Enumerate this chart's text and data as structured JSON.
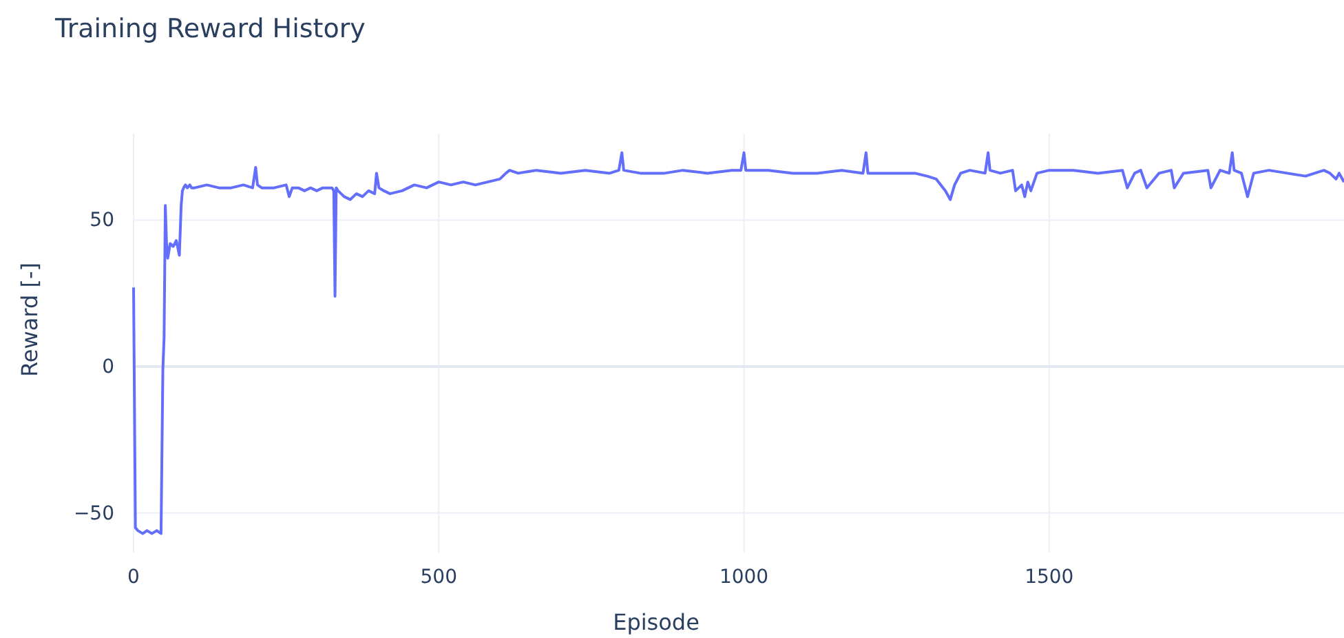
{
  "chart_data": {
    "type": "line",
    "title": "Training Reward History",
    "xlabel": "Episode",
    "ylabel": "Reward [-]",
    "xlim": [
      0,
      1983
    ],
    "ylim": [
      -63.5,
      79.5
    ],
    "xticks": [
      0,
      500,
      1000,
      1500
    ],
    "yticks": [
      -50,
      0,
      50
    ],
    "grid": true,
    "series": [
      {
        "color": "#636efa",
        "x": [
          0,
          3,
          7,
          15,
          22,
          30,
          38,
          45,
          48,
          50,
          52,
          54,
          56,
          60,
          65,
          70,
          75,
          78,
          80,
          82,
          85,
          88,
          92,
          95,
          100,
          120,
          140,
          160,
          180,
          195,
          200,
          203,
          210,
          230,
          250,
          255,
          260,
          270,
          280,
          290,
          300,
          310,
          320,
          325,
          328,
          330,
          332,
          335,
          345,
          355,
          365,
          375,
          385,
          395,
          398,
          402,
          410,
          420,
          440,
          460,
          480,
          500,
          520,
          540,
          560,
          580,
          600,
          610,
          616,
          630,
          660,
          700,
          740,
          780,
          795,
          800,
          803,
          830,
          870,
          900,
          940,
          980,
          995,
          1000,
          1003,
          1040,
          1080,
          1120,
          1160,
          1195,
          1200,
          1203,
          1240,
          1280,
          1300,
          1315,
          1330,
          1338,
          1345,
          1355,
          1370,
          1395,
          1400,
          1403,
          1420,
          1440,
          1445,
          1455,
          1460,
          1465,
          1470,
          1480,
          1500,
          1540,
          1580,
          1620,
          1628,
          1640,
          1650,
          1660,
          1680,
          1700,
          1705,
          1720,
          1760,
          1765,
          1780,
          1795,
          1800,
          1803,
          1815,
          1825,
          1835,
          1860,
          1890,
          1920,
          1950,
          1960,
          1970,
          1975,
          1983
        ],
        "values": [
          27,
          -55,
          -56,
          -57,
          -56,
          -57,
          -56,
          -57,
          -1,
          10,
          55,
          42,
          37,
          42,
          41,
          43,
          38,
          55,
          60,
          61,
          62,
          61,
          62,
          61,
          61,
          62,
          61,
          61,
          62,
          61,
          68,
          62,
          61,
          61,
          62,
          58,
          61,
          61,
          60,
          61,
          60,
          61,
          61,
          61,
          60,
          24,
          61,
          60,
          58,
          57,
          59,
          58,
          60,
          59,
          66,
          61,
          60,
          59,
          60,
          62,
          61,
          63,
          62,
          63,
          62,
          63,
          64,
          66,
          67,
          66,
          67,
          66,
          67,
          66,
          67,
          73,
          67,
          66,
          66,
          67,
          66,
          67,
          67,
          73,
          67,
          67,
          66,
          66,
          67,
          66,
          73,
          66,
          66,
          66,
          65,
          64,
          60,
          57,
          62,
          66,
          67,
          66,
          73,
          67,
          66,
          67,
          60,
          62,
          58,
          63,
          60,
          66,
          67,
          67,
          66,
          67,
          61,
          66,
          67,
          61,
          66,
          67,
          61,
          66,
          67,
          61,
          67,
          66,
          73,
          67,
          66,
          58,
          66,
          67,
          66,
          65,
          67,
          66,
          64,
          66,
          63
        ]
      }
    ]
  }
}
